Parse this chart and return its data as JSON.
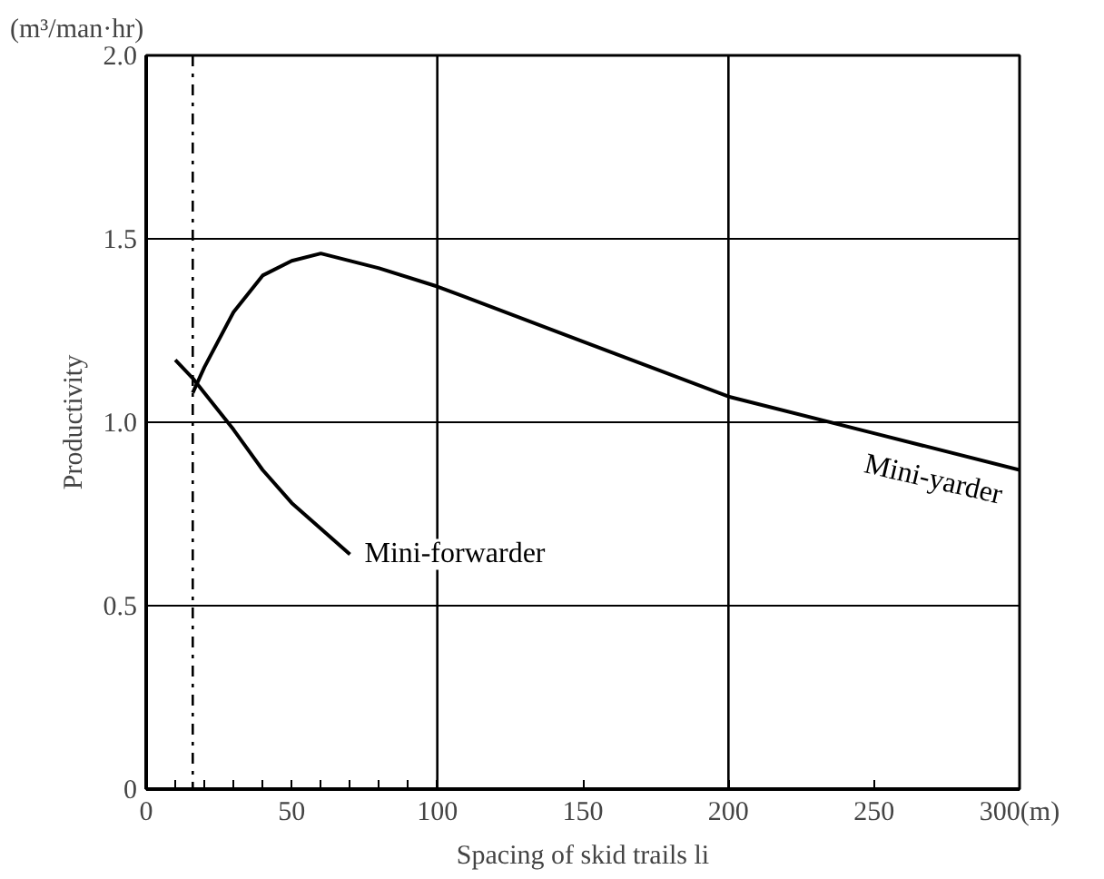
{
  "chart_data": {
    "type": "line",
    "xlabel": "Spacing of skid trails li",
    "ylabel": "Productivity",
    "annotations": [
      "(m³/man·hr)"
    ],
    "xlim": [
      0,
      300
    ],
    "ylim": [
      0,
      2.0
    ],
    "xticks": [
      0,
      {
        "value": 10,
        "label": null
      },
      {
        "value": 20,
        "label": null
      },
      {
        "value": 30,
        "label": null
      },
      {
        "value": 40,
        "label": null
      },
      50,
      {
        "value": 60,
        "label": null
      },
      {
        "value": 70,
        "label": null
      },
      {
        "value": 80,
        "label": null
      },
      {
        "value": 90,
        "label": null
      },
      100,
      150,
      200,
      250,
      {
        "value": 300,
        "label": "300(m)"
      }
    ],
    "yticks": [
      0,
      0.5,
      {
        "value": 1,
        "label": "1.0"
      },
      1.5,
      {
        "value": 2,
        "label": "2.0"
      }
    ],
    "grid": "y",
    "line_style": "solid",
    "marker": "none",
    "ref_lines": [
      {
        "axis": "x",
        "value": 100,
        "label": null,
        "color": "#000000",
        "line_style": "solid"
      },
      {
        "axis": "x",
        "value": 200,
        "label": null,
        "color": "#000000",
        "line_style": "solid"
      },
      {
        "axis": "x",
        "value": 16,
        "label": null,
        "color": "#000000",
        "line_style": "dashdot"
      }
    ],
    "series": [
      {
        "name": "Mini-yarder",
        "color": "#000000",
        "x": [
          16,
          20,
          30,
          40,
          50,
          60,
          80,
          100,
          150,
          200,
          250,
          300
        ],
        "values": [
          1.08,
          1.15,
          1.3,
          1.4,
          1.44,
          1.46,
          1.42,
          1.37,
          1.22,
          1.07,
          0.97,
          0.87
        ]
      },
      {
        "name": "Mini-forwarder",
        "color": "#000000",
        "x": [
          10,
          16,
          20,
          30,
          40,
          50,
          60,
          70
        ],
        "values": [
          1.17,
          1.12,
          1.08,
          0.98,
          0.87,
          0.78,
          0.71,
          0.64
        ]
      }
    ]
  }
}
